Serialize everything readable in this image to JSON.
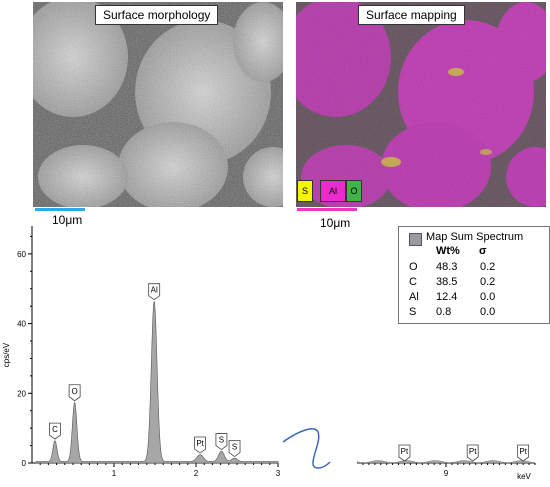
{
  "images": {
    "sem": {
      "title": "Surface morphology",
      "scale_label": "10μm"
    },
    "mapping": {
      "title": "Surface mapping",
      "scale_label": "10μm",
      "legend": [
        {
          "label": "S",
          "color": "#f5f500"
        },
        {
          "label": "Al",
          "color": "#ea2ccc"
        },
        {
          "label": "O",
          "color": "#42b34a"
        }
      ]
    }
  },
  "chart_data": {
    "type": "area",
    "title": "",
    "ylabel": "cps/eV",
    "xlabel": "keV",
    "ylim": [
      0,
      68
    ],
    "yticks": [
      0,
      20,
      40,
      60
    ],
    "xticks_left": [
      "1",
      "2",
      "3"
    ],
    "xticks_right": [
      "9"
    ],
    "xlim_left": [
      0,
      3
    ],
    "xlim_right": [
      7.5,
      10.5
    ],
    "peaks": [
      {
        "label": "C",
        "x": 0.28,
        "y": 6
      },
      {
        "label": "O",
        "x": 0.52,
        "y": 17
      },
      {
        "label": "Al",
        "x": 1.49,
        "y": 46
      },
      {
        "label": "Pt",
        "x": 2.05,
        "y": 2
      },
      {
        "label": "S",
        "x": 2.31,
        "y": 3
      },
      {
        "label": "S",
        "x": 2.47,
        "y": 1
      }
    ],
    "peak_markers_right": [
      {
        "label": "Pt",
        "x": 8.3
      },
      {
        "label": "Pt",
        "x": 9.45
      },
      {
        "label": "Pt",
        "x": 10.3
      }
    ],
    "legend": {
      "title": "Map Sum Spectrum",
      "headers": [
        "Wt%",
        "σ"
      ],
      "rows": [
        {
          "el": "O",
          "wt": "48.3",
          "sigma": "0.2"
        },
        {
          "el": "C",
          "wt": "38.5",
          "sigma": "0.2"
        },
        {
          "el": "Al",
          "wt": "12.4",
          "sigma": "0.0"
        },
        {
          "el": "S",
          "wt": "0.8",
          "sigma": "0.0"
        }
      ]
    }
  }
}
